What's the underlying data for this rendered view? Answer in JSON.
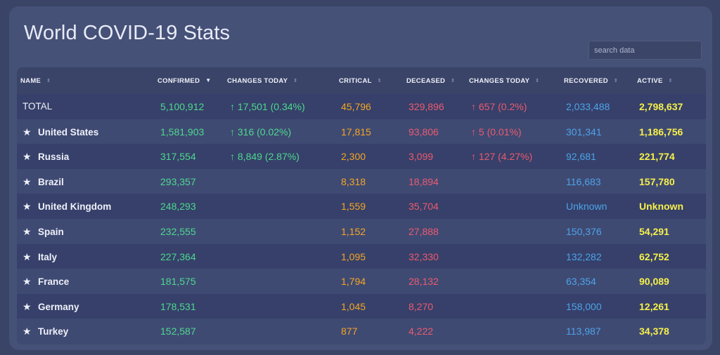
{
  "title": "World COVID-19 Stats",
  "search": {
    "placeholder": "search data"
  },
  "columns": [
    {
      "label": "NAME",
      "sort": "⇕"
    },
    {
      "label": "CONFIRMED",
      "sort": "▼"
    },
    {
      "label": "CHANGES TODAY",
      "sort": "⇕"
    },
    {
      "label": "CRITICAL",
      "sort": "⇕"
    },
    {
      "label": "DECEASED",
      "sort": "⇕"
    },
    {
      "label": "CHANGES TODAY",
      "sort": "⇕"
    },
    {
      "label": "RECOVERED",
      "sort": "⇕"
    },
    {
      "label": "ACTIVE",
      "sort": "⇕"
    }
  ],
  "rows": [
    {
      "star": "",
      "name": "TOTAL",
      "confirmed": "5,100,912",
      "conf_change": "↑ 17,501 (0.34%)",
      "critical": "45,796",
      "deceased": "329,896",
      "dec_change": "↑ 657 (0.2%)",
      "recovered": "2,033,488",
      "active": "2,798,637"
    },
    {
      "star": "★",
      "name": "United States",
      "confirmed": "1,581,903",
      "conf_change": "↑ 316 (0.02%)",
      "critical": "17,815",
      "deceased": "93,806",
      "dec_change": "↑ 5 (0.01%)",
      "recovered": "301,341",
      "active": "1,186,756"
    },
    {
      "star": "★",
      "name": "Russia",
      "confirmed": "317,554",
      "conf_change": "↑ 8,849 (2.87%)",
      "critical": "2,300",
      "deceased": "3,099",
      "dec_change": "↑ 127 (4.27%)",
      "recovered": "92,681",
      "active": "221,774"
    },
    {
      "star": "★",
      "name": "Brazil",
      "confirmed": "293,357",
      "conf_change": "",
      "critical": "8,318",
      "deceased": "18,894",
      "dec_change": "",
      "recovered": "116,683",
      "active": "157,780"
    },
    {
      "star": "★",
      "name": "United Kingdom",
      "confirmed": "248,293",
      "conf_change": "",
      "critical": "1,559",
      "deceased": "35,704",
      "dec_change": "",
      "recovered": "Unknown",
      "active": "Unknown"
    },
    {
      "star": "★",
      "name": "Spain",
      "confirmed": "232,555",
      "conf_change": "",
      "critical": "1,152",
      "deceased": "27,888",
      "dec_change": "",
      "recovered": "150,376",
      "active": "54,291"
    },
    {
      "star": "★",
      "name": "Italy",
      "confirmed": "227,364",
      "conf_change": "",
      "critical": "1,095",
      "deceased": "32,330",
      "dec_change": "",
      "recovered": "132,282",
      "active": "62,752"
    },
    {
      "star": "★",
      "name": "France",
      "confirmed": "181,575",
      "conf_change": "",
      "critical": "1,794",
      "deceased": "28,132",
      "dec_change": "",
      "recovered": "63,354",
      "active": "90,089"
    },
    {
      "star": "★",
      "name": "Germany",
      "confirmed": "178,531",
      "conf_change": "",
      "critical": "1,045",
      "deceased": "8,270",
      "dec_change": "",
      "recovered": "158,000",
      "active": "12,261"
    },
    {
      "star": "★",
      "name": "Turkey",
      "confirmed": "152,587",
      "conf_change": "",
      "critical": "877",
      "deceased": "4,222",
      "dec_change": "",
      "recovered": "113,987",
      "active": "34,378"
    }
  ],
  "colors": {
    "background": "#3a4466",
    "card": "#465178",
    "confirmed": "#4ed88e",
    "critical": "#f5a623",
    "deceased": "#ec5a6e",
    "recovered": "#4da3e8",
    "active": "#f6f04a"
  }
}
